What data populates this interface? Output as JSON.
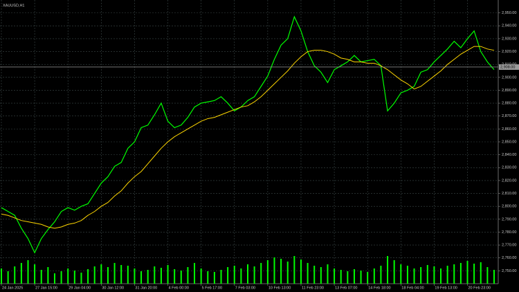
{
  "chart_data": [
    {
      "type": "line",
      "title": "XAUUSD,H1",
      "categories": [
        "24 Jan 2025",
        null,
        null,
        null,
        null,
        "27 Jan 15:00",
        null,
        null,
        null,
        null,
        "29 Jan 04:00",
        null,
        null,
        null,
        null,
        "30 Jan 12:00",
        null,
        null,
        null,
        null,
        "31 Jan 20:00",
        null,
        null,
        null,
        null,
        "4 Feb 00:00",
        null,
        null,
        null,
        null,
        "5 Feb 17:00",
        null,
        null,
        null,
        null,
        "7 Feb 03:00",
        null,
        null,
        null,
        null,
        "10 Feb 13:00",
        null,
        null,
        null,
        null,
        "11 Feb 23:00",
        null,
        null,
        null,
        null,
        "13 Feb 07:00",
        null,
        null,
        null,
        null,
        "14 Feb 18:00",
        null,
        null,
        null,
        null,
        "18 Feb 04:00",
        null,
        null,
        null,
        null,
        "19 Feb 13:00",
        null,
        null,
        null,
        null,
        "20 Feb 23:00",
        null,
        null,
        null,
        null
      ],
      "series": [
        {
          "name": "XAUUSD",
          "color": "#00ff00",
          "values": [
            2799,
            2796,
            2793,
            2783,
            2775,
            2764,
            2775,
            2782,
            2788,
            2796,
            2799,
            2797,
            2800,
            2802,
            2810,
            2818,
            2823,
            2831,
            2834,
            2845,
            2850,
            2861,
            2863,
            2871,
            2880,
            2866,
            2861,
            2863,
            2869,
            2877,
            2880,
            2881,
            2882,
            2885,
            2880,
            2874,
            2877,
            2882,
            2885,
            2893,
            2901,
            2914,
            2925,
            2930,
            2947,
            2936,
            2920,
            2909,
            2904,
            2896,
            2906,
            2909,
            2912,
            2917,
            2912,
            2913,
            2914,
            2909,
            2874,
            2880,
            2888,
            2890,
            2893,
            2904,
            2906,
            2912,
            2917,
            2922,
            2928,
            2923,
            2930,
            2936,
            2920,
            2912,
            2906
          ]
        },
        {
          "name": "MA",
          "color": "#ffd700",
          "values": [
            2794,
            2793,
            2791,
            2789,
            2788,
            2787,
            2786,
            2784,
            2783,
            2784,
            2786,
            2787,
            2789,
            2793,
            2796,
            2800,
            2803,
            2808,
            2812,
            2818,
            2823,
            2827,
            2833,
            2839,
            2845,
            2850,
            2854,
            2857,
            2860,
            2863,
            2866,
            2868,
            2869,
            2871,
            2873,
            2875,
            2877,
            2878,
            2881,
            2885,
            2890,
            2895,
            2900,
            2905,
            2911,
            2916,
            2920,
            2921,
            2921,
            2920,
            2918,
            2915,
            2914,
            2912,
            2912,
            2911,
            2911,
            2909,
            2906,
            2902,
            2898,
            2895,
            2891,
            2893,
            2897,
            2901,
            2905,
            2910,
            2914,
            2918,
            2921,
            2924,
            2924,
            2922,
            2921
          ]
        }
      ],
      "ylim": [
        2740,
        2960
      ],
      "yticks": [
        {
          "value": 2750,
          "label": "2,750.00"
        },
        {
          "value": 2760,
          "label": "2,760.00"
        },
        {
          "value": 2770,
          "label": "2,770.00"
        },
        {
          "value": 2780,
          "label": "2,780.00"
        },
        {
          "value": 2790,
          "label": "2,790.00"
        },
        {
          "value": 2800,
          "label": "2,800.00"
        },
        {
          "value": 2810,
          "label": "2,810.00"
        },
        {
          "value": 2820,
          "label": "2,820.00"
        },
        {
          "value": 2830,
          "label": "2,830.00"
        },
        {
          "value": 2840,
          "label": "2,840.00"
        },
        {
          "value": 2850,
          "label": "2,850.00"
        },
        {
          "value": 2860,
          "label": "2,860.00"
        },
        {
          "value": 2870,
          "label": "2,870.00"
        },
        {
          "value": 2880,
          "label": "2,880.00"
        },
        {
          "value": 2890,
          "label": "2,890.00"
        },
        {
          "value": 2900,
          "label": "2,900.00"
        },
        {
          "value": 2910,
          "label": "2,910.00"
        },
        {
          "value": 2920,
          "label": "2,920.00"
        },
        {
          "value": 2930,
          "label": "2,930.00"
        },
        {
          "value": 2940,
          "label": "2,940.00"
        },
        {
          "value": 2950,
          "label": "2,950.00"
        }
      ],
      "last_price": {
        "value": 2908,
        "label": "2,908.00"
      },
      "grid": true
    },
    {
      "type": "bar",
      "color": "#00ff00",
      "values": [
        22,
        18,
        25,
        30,
        34,
        28,
        20,
        24,
        15,
        18,
        22,
        19,
        16,
        21,
        25,
        28,
        24,
        30,
        27,
        26,
        22,
        18,
        20,
        25,
        23,
        27,
        21,
        19,
        24,
        30,
        22,
        18,
        17,
        20,
        24,
        26,
        22,
        28,
        25,
        30,
        34,
        38,
        36,
        32,
        40,
        35,
        30,
        26,
        24,
        28,
        22,
        20,
        18,
        21,
        19,
        17,
        22,
        26,
        40,
        34,
        28,
        26,
        22,
        24,
        27,
        25,
        22,
        26,
        28,
        30,
        33,
        29,
        31,
        24,
        20
      ],
      "ylim": [
        0,
        100
      ]
    }
  ]
}
